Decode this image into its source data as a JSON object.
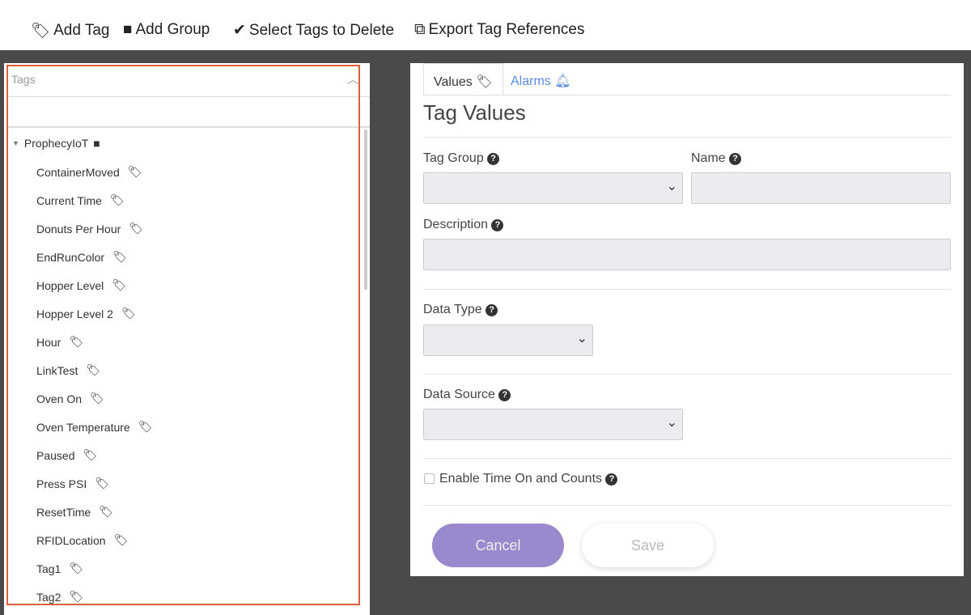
{
  "toolbar": {
    "add_tag": "Add Tag",
    "add_group": "Add Group",
    "select_delete": "Select Tags to Delete",
    "export": "Export Tag References"
  },
  "tree": {
    "header": "Tags",
    "search_placeholder": "",
    "folder": "ProphecyIoT",
    "items": [
      "ContainerMoved",
      "Current Time",
      "Donuts Per Hour",
      "EndRunColor",
      "Hopper Level",
      "Hopper Level 2",
      "Hour",
      "LinkTest",
      "Oven On",
      "Oven Temperature",
      "Paused",
      "Press PSI",
      "ResetTime",
      "RFIDLocation",
      "Tag1",
      "Tag2"
    ]
  },
  "form": {
    "tabs": [
      {
        "label": "Values"
      },
      {
        "label": "Alarms"
      }
    ],
    "title": "Tag Values",
    "tag_group_label": "Tag Group",
    "name_label": "Name",
    "description_label": "Description",
    "data_type_label": "Data Type",
    "data_source_label": "Data Source",
    "enable_label": "Enable Time On and Counts",
    "tag_group_value": "",
    "name_value": "",
    "description_value": "",
    "data_type_value": "",
    "data_source_value": "",
    "enable_checked": false,
    "cancel": "Cancel",
    "save": "Save"
  },
  "colors": {
    "accent": "#9a89cc",
    "alarm_tab": "#5b8be0",
    "highlight_border": "#d9603b"
  }
}
